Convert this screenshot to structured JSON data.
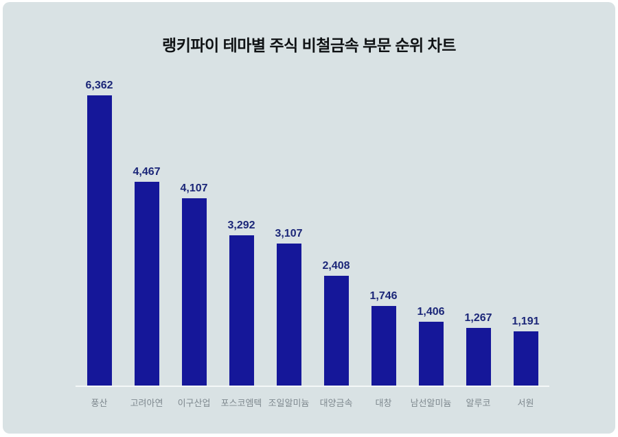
{
  "page": {
    "background": "#ffffff",
    "panel_background": "#d9e2e4"
  },
  "chart_data": {
    "type": "bar",
    "title": "랭키파이 테마별 주식 비철금속 부문 순위 차트",
    "categories": [
      "풍산",
      "고려아연",
      "이구산업",
      "포스코엠텍",
      "조일알미늄",
      "대양금속",
      "대창",
      "남선알미늄",
      "알루코",
      "서원"
    ],
    "values": [
      6362,
      4467,
      4107,
      3292,
      3107,
      2408,
      1746,
      1406,
      1267,
      1191
    ],
    "value_labels": [
      "6,362",
      "4,467",
      "4,107",
      "3,292",
      "3,107",
      "2,408",
      "1,746",
      "1,406",
      "1,267",
      "1,191"
    ],
    "xlabel": "",
    "ylabel": "",
    "ylim": [
      0,
      6362
    ],
    "grid": false,
    "legend": false,
    "colors": {
      "bar": "#151799",
      "value_label": "#1b2678",
      "category_label": "#7e888e",
      "axis_line": "#f4f8f8",
      "title": "#0f1214"
    }
  }
}
